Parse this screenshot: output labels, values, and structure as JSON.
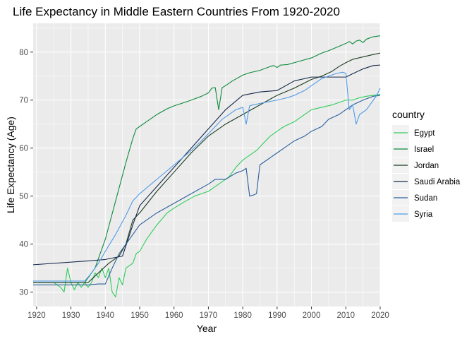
{
  "chart_data": {
    "type": "line",
    "title": "Life Expectancy in Middle Eastern Countries From 1920-2020",
    "xlabel": "Year",
    "ylabel": "Life Expectancy (Age)",
    "xlim": [
      1919,
      2020
    ],
    "ylim": [
      27,
      86
    ],
    "xticks": [
      1920,
      1930,
      1940,
      1950,
      1960,
      1970,
      1980,
      1990,
      2000,
      2010,
      2020
    ],
    "yticks": [
      30,
      40,
      50,
      60,
      70,
      80
    ],
    "grid": true,
    "legend": {
      "title": "country",
      "position": "right"
    },
    "series": [
      {
        "name": "Egypt",
        "color": "#2ECC5A",
        "points": [
          [
            1919,
            32
          ],
          [
            1925,
            32
          ],
          [
            1927,
            31
          ],
          [
            1928,
            30
          ],
          [
            1929,
            35
          ],
          [
            1930,
            32
          ],
          [
            1931,
            30.5
          ],
          [
            1932,
            32
          ],
          [
            1933,
            31
          ],
          [
            1934,
            32
          ],
          [
            1935,
            31
          ],
          [
            1936,
            32
          ],
          [
            1937,
            34
          ],
          [
            1938,
            33
          ],
          [
            1939,
            35
          ],
          [
            1940,
            33
          ],
          [
            1941,
            35
          ],
          [
            1942,
            30
          ],
          [
            1943,
            29
          ],
          [
            1944,
            33
          ],
          [
            1945,
            31.5
          ],
          [
            1946,
            35
          ],
          [
            1947,
            35.5
          ],
          [
            1948,
            36
          ],
          [
            1949,
            38
          ],
          [
            1950,
            38.5
          ],
          [
            1952,
            41
          ],
          [
            1955,
            44
          ],
          [
            1958,
            46.5
          ],
          [
            1960,
            47.5
          ],
          [
            1963,
            48.8
          ],
          [
            1966,
            50
          ],
          [
            1968,
            50.5
          ],
          [
            1970,
            51
          ],
          [
            1972,
            52
          ],
          [
            1974,
            53
          ],
          [
            1976,
            54
          ],
          [
            1978,
            56
          ],
          [
            1980,
            57.5
          ],
          [
            1982,
            58.5
          ],
          [
            1984,
            59.5
          ],
          [
            1986,
            61
          ],
          [
            1988,
            62.5
          ],
          [
            1990,
            63.5
          ],
          [
            1992,
            64.5
          ],
          [
            1995,
            65.5
          ],
          [
            1998,
            67
          ],
          [
            2000,
            68
          ],
          [
            2003,
            68.5
          ],
          [
            2006,
            69
          ],
          [
            2008,
            69.5
          ],
          [
            2010,
            70
          ],
          [
            2012,
            70
          ],
          [
            2014,
            70.5
          ],
          [
            2016,
            70.8
          ],
          [
            2018,
            71
          ],
          [
            2020,
            71.2
          ]
        ]
      },
      {
        "name": "Israel",
        "color": "#0C8A3C",
        "points": [
          [
            1919,
            32
          ],
          [
            1934,
            32
          ],
          [
            1937,
            35
          ],
          [
            1940,
            41
          ],
          [
            1943,
            49
          ],
          [
            1946,
            57
          ],
          [
            1948,
            62
          ],
          [
            1949,
            64
          ],
          [
            1950,
            64.5
          ],
          [
            1952,
            65.5
          ],
          [
            1955,
            67
          ],
          [
            1958,
            68.2
          ],
          [
            1960,
            68.8
          ],
          [
            1963,
            69.5
          ],
          [
            1965,
            70
          ],
          [
            1968,
            70.8
          ],
          [
            1970,
            71.5
          ],
          [
            1971,
            72.5
          ],
          [
            1972,
            72.6
          ],
          [
            1973,
            68
          ],
          [
            1974,
            72.6
          ],
          [
            1975,
            73
          ],
          [
            1977,
            74
          ],
          [
            1980,
            75.2
          ],
          [
            1982,
            75.7
          ],
          [
            1985,
            76.2
          ],
          [
            1988,
            77
          ],
          [
            1989,
            77.2
          ],
          [
            1990,
            76.8
          ],
          [
            1991,
            77.3
          ],
          [
            1993,
            77.4
          ],
          [
            1995,
            77.8
          ],
          [
            1998,
            78.4
          ],
          [
            2000,
            78.8
          ],
          [
            2003,
            79.8
          ],
          [
            2005,
            80.3
          ],
          [
            2008,
            81.2
          ],
          [
            2010,
            81.8
          ],
          [
            2011,
            82.2
          ],
          [
            2012,
            81.7
          ],
          [
            2013,
            82.3
          ],
          [
            2014,
            82.5
          ],
          [
            2015,
            82
          ],
          [
            2016,
            82.7
          ],
          [
            2018,
            83.2
          ],
          [
            2020,
            83.4
          ]
        ]
      },
      {
        "name": "Jordan",
        "color": "#1A3A1F",
        "points": [
          [
            1919,
            32
          ],
          [
            1935,
            32
          ],
          [
            1938,
            34
          ],
          [
            1941,
            36
          ],
          [
            1944,
            37.5
          ],
          [
            1946,
            40
          ],
          [
            1948,
            45
          ],
          [
            1950,
            46.5
          ],
          [
            1955,
            51
          ],
          [
            1960,
            55
          ],
          [
            1965,
            59
          ],
          [
            1970,
            62.5
          ],
          [
            1975,
            65
          ],
          [
            1980,
            67
          ],
          [
            1985,
            69
          ],
          [
            1990,
            71
          ],
          [
            1995,
            72.5
          ],
          [
            2000,
            74.3
          ],
          [
            2003,
            75
          ],
          [
            2006,
            76
          ],
          [
            2008,
            77
          ],
          [
            2010,
            77.8
          ],
          [
            2012,
            78.5
          ],
          [
            2015,
            79
          ],
          [
            2018,
            79.5
          ],
          [
            2020,
            79.8
          ]
        ]
      },
      {
        "name": "Saudi Arabia",
        "color": "#15284A",
        "points": [
          [
            1919,
            35.7
          ],
          [
            1935,
            36.5
          ],
          [
            1940,
            36.8
          ],
          [
            1945,
            37.5
          ],
          [
            1948,
            44
          ],
          [
            1950,
            48
          ],
          [
            1955,
            52
          ],
          [
            1960,
            56
          ],
          [
            1965,
            60
          ],
          [
            1970,
            64
          ],
          [
            1975,
            68
          ],
          [
            1980,
            71
          ],
          [
            1985,
            71.7
          ],
          [
            1990,
            72
          ],
          [
            1995,
            74
          ],
          [
            2000,
            74.8
          ],
          [
            2005,
            74.8
          ],
          [
            2010,
            74.8
          ],
          [
            2012,
            75.5
          ],
          [
            2015,
            76.5
          ],
          [
            2018,
            77.2
          ],
          [
            2020,
            77.3
          ]
        ]
      },
      {
        "name": "Sudan",
        "color": "#2A5F9E",
        "points": [
          [
            1919,
            31.5
          ],
          [
            1935,
            31.5
          ],
          [
            1938,
            31.7
          ],
          [
            1940,
            31.7
          ],
          [
            1942,
            35
          ],
          [
            1944,
            38
          ],
          [
            1946,
            40
          ],
          [
            1948,
            42
          ],
          [
            1950,
            44
          ],
          [
            1955,
            46.5
          ],
          [
            1960,
            48.5
          ],
          [
            1965,
            50.5
          ],
          [
            1970,
            52.5
          ],
          [
            1972,
            53.5
          ],
          [
            1975,
            53.5
          ],
          [
            1978,
            54.8
          ],
          [
            1980,
            55.3
          ],
          [
            1981,
            55.8
          ],
          [
            1982,
            50
          ],
          [
            1983,
            50.2
          ],
          [
            1984,
            50.5
          ],
          [
            1985,
            56.5
          ],
          [
            1988,
            58
          ],
          [
            1990,
            59
          ],
          [
            1993,
            60.5
          ],
          [
            1995,
            61.5
          ],
          [
            1998,
            62.5
          ],
          [
            2000,
            63.5
          ],
          [
            2003,
            64.5
          ],
          [
            2005,
            66
          ],
          [
            2008,
            67
          ],
          [
            2010,
            68
          ],
          [
            2012,
            69
          ],
          [
            2015,
            70
          ],
          [
            2018,
            70.8
          ],
          [
            2020,
            71
          ]
        ]
      },
      {
        "name": "Syria",
        "color": "#4F9BE8",
        "points": [
          [
            1919,
            32.3
          ],
          [
            1934,
            32.3
          ],
          [
            1936,
            34
          ],
          [
            1938,
            36
          ],
          [
            1940,
            38.5
          ],
          [
            1943,
            42
          ],
          [
            1946,
            46
          ],
          [
            1948,
            49
          ],
          [
            1950,
            50.5
          ],
          [
            1955,
            53.5
          ],
          [
            1960,
            56.5
          ],
          [
            1965,
            59.5
          ],
          [
            1968,
            61.5
          ],
          [
            1970,
            63
          ],
          [
            1972,
            64.5
          ],
          [
            1974,
            66
          ],
          [
            1976,
            67
          ],
          [
            1978,
            68
          ],
          [
            1980,
            68.5
          ],
          [
            1981,
            65
          ],
          [
            1982,
            68.8
          ],
          [
            1983,
            69
          ],
          [
            1985,
            69.3
          ],
          [
            1987,
            69.6
          ],
          [
            1990,
            70
          ],
          [
            1993,
            70.5
          ],
          [
            1995,
            71
          ],
          [
            1998,
            72
          ],
          [
            2000,
            73
          ],
          [
            2003,
            74.5
          ],
          [
            2005,
            75
          ],
          [
            2007,
            75.5
          ],
          [
            2009,
            75.8
          ],
          [
            2010,
            75.6
          ],
          [
            2011,
            68
          ],
          [
            2012,
            69
          ],
          [
            2013,
            65
          ],
          [
            2014,
            67
          ],
          [
            2015,
            67.5
          ],
          [
            2016,
            68
          ],
          [
            2017,
            69
          ],
          [
            2018,
            70
          ],
          [
            2019,
            71
          ],
          [
            2020,
            72.5
          ]
        ]
      }
    ]
  }
}
